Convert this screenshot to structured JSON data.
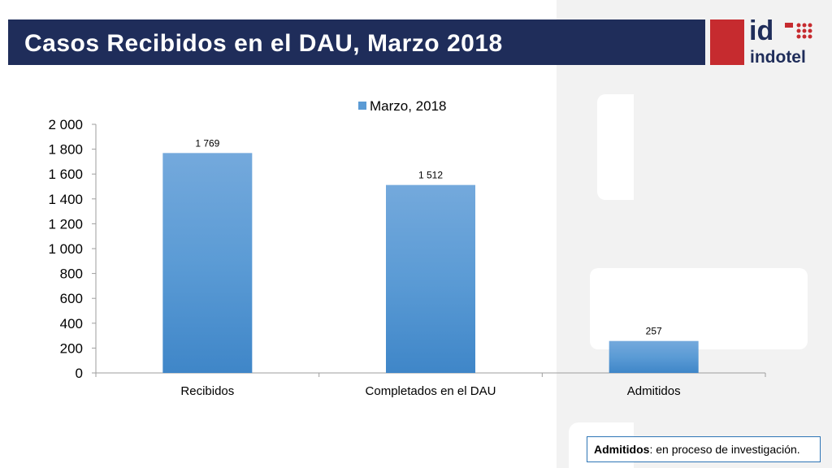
{
  "slide": {
    "title": "Casos Recibidos en el DAU, Marzo 2018",
    "logo": {
      "mark": "id",
      "name": "indotel"
    },
    "note": {
      "term": "Admitidos",
      "text": ": en proceso de investigación."
    },
    "colors": {
      "title_bar": "#1f2d5a",
      "logo_red": "#c62b2f",
      "bar": "#5b9bd5"
    }
  },
  "chart_data": {
    "type": "bar",
    "categories": [
      "Recibidos",
      "Completados en el DAU",
      "Admitidos"
    ],
    "series": [
      {
        "name": "Marzo, 2018",
        "values": [
          1769,
          1512,
          257
        ]
      }
    ],
    "data_labels": [
      "1 769",
      "1 512",
      "257"
    ],
    "y_ticks": [
      "0",
      "200",
      "400",
      "600",
      "800",
      "1 000",
      "1 200",
      "1 400",
      "1 600",
      "1 800",
      "2 000"
    ],
    "ylim": [
      0,
      2000
    ],
    "legend_position": "top",
    "grid": false
  }
}
